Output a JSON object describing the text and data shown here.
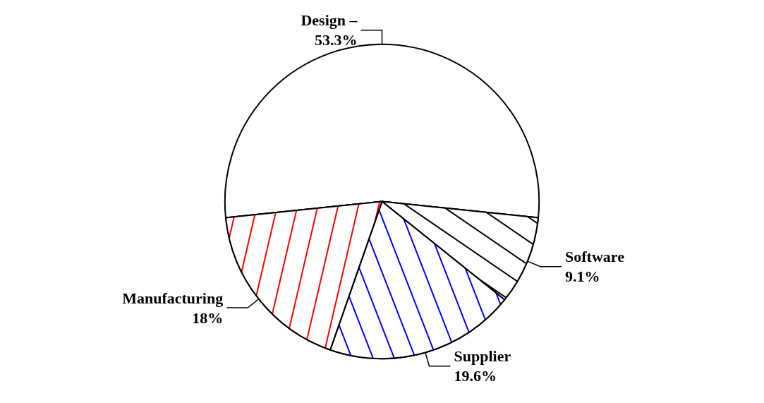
{
  "chart_data": {
    "type": "pie",
    "categories": [
      "Design –",
      "Software",
      "Supplier",
      "Manufacturing"
    ],
    "values": [
      53.3,
      9.1,
      19.6,
      18
    ],
    "value_labels": [
      "53.3%",
      "9.1%",
      "19.6%",
      "18%"
    ],
    "colors": [
      "#ffffff",
      "#000000",
      "#0000ff",
      "#ff0000"
    ]
  }
}
